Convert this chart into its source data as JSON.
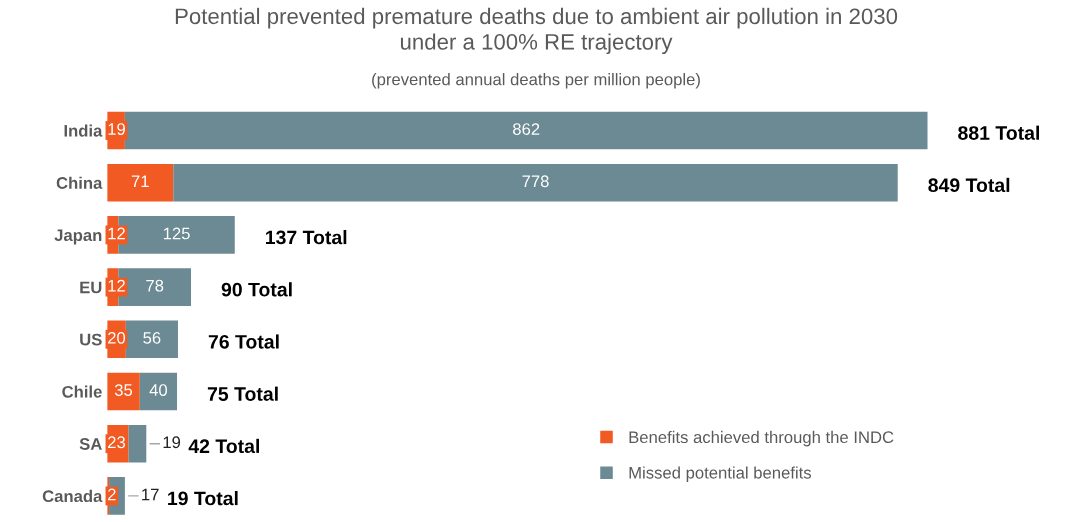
{
  "chart_data": {
    "type": "bar",
    "orientation": "horizontal",
    "stacked": true,
    "title": "Potential prevented premature deaths due to ambient air pollution in 2030\nunder a 100% RE trajectory",
    "subtitle": "(prevented annual deaths per million people)",
    "categories": [
      "India",
      "China",
      "Japan",
      "EU",
      "US",
      "Chile",
      "SA",
      "Canada"
    ],
    "series": [
      {
        "name": "Benefits achieved through the INDC",
        "color": "#f15a22",
        "values": [
          19,
          71,
          12,
          12,
          20,
          35,
          23,
          2
        ]
      },
      {
        "name": "Missed potential benefits",
        "color": "#6b8a93",
        "values": [
          862,
          778,
          125,
          78,
          56,
          40,
          19,
          17
        ]
      }
    ],
    "totals": [
      "881 Total",
      "849 Total",
      "137 Total",
      "90 Total",
      "76 Total",
      "75 Total",
      "42 Total",
      "19 Total"
    ],
    "data_labels": true,
    "legend": "bottom right",
    "grid": false,
    "tick_labels": "y"
  }
}
